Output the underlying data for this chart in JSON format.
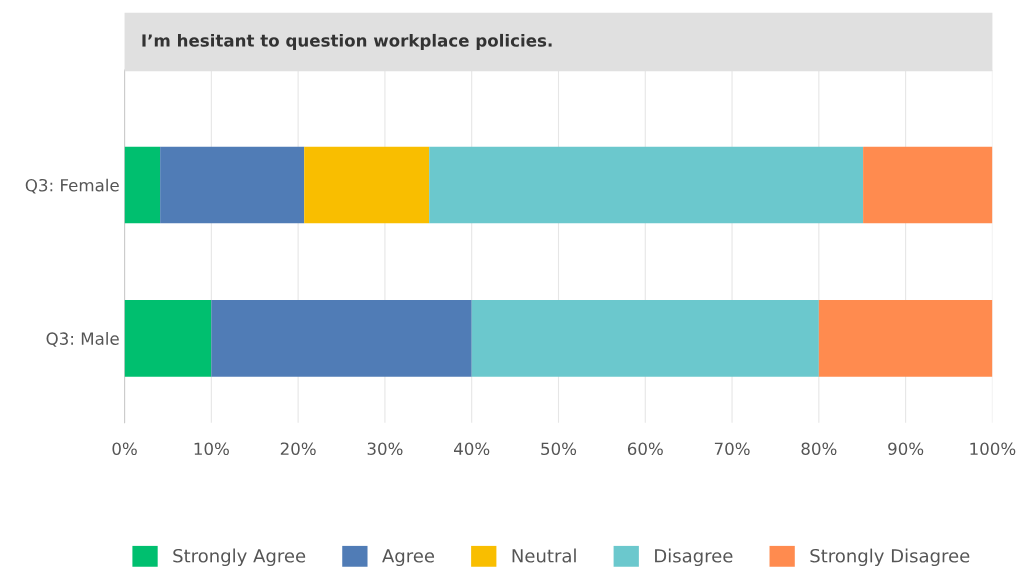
{
  "chart_data": {
    "type": "bar",
    "orientation": "horizontal",
    "stacked": true,
    "title": "I’m hesitant to question workplace policies.",
    "categories": [
      "Q3: Female",
      "Q3: Male"
    ],
    "series": [
      {
        "name": "Strongly Agree",
        "color": "#00bf6f",
        "values": [
          4.1,
          10
        ]
      },
      {
        "name": "Agree",
        "color": "#507cb6",
        "values": [
          16.6,
          30
        ]
      },
      {
        "name": "Neutral",
        "color": "#f9be00",
        "values": [
          14.4,
          0
        ]
      },
      {
        "name": "Disagree",
        "color": "#6bc8cd",
        "values": [
          50.0,
          40
        ]
      },
      {
        "name": "Strongly Disagree",
        "color": "#ff8b4f",
        "values": [
          14.9,
          20
        ]
      }
    ],
    "xlim": [
      0,
      100
    ],
    "xticks": [
      {
        "value": 0,
        "label": "0%"
      },
      {
        "value": 10,
        "label": "10%"
      },
      {
        "value": 20,
        "label": "20%"
      },
      {
        "value": 30,
        "label": "30%"
      },
      {
        "value": 40,
        "label": "40%"
      },
      {
        "value": 50,
        "label": "50%"
      },
      {
        "value": 60,
        "label": "60%"
      },
      {
        "value": 70,
        "label": "70%"
      },
      {
        "value": 80,
        "label": "80%"
      },
      {
        "value": 90,
        "label": "90%"
      },
      {
        "value": 100,
        "label": "100%"
      }
    ],
    "grid": "x",
    "legend": "bottom"
  }
}
